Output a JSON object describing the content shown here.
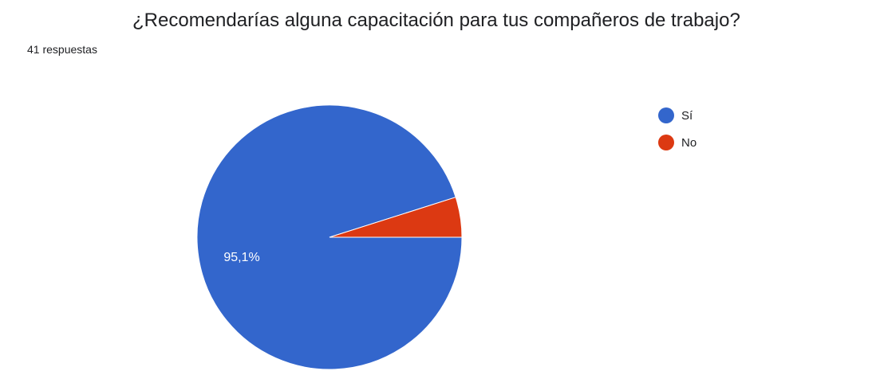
{
  "header": {
    "title": "¿Recomendarías alguna capacitación para tus compañeros de trabajo?",
    "response_count": "41 respuestas"
  },
  "chart_data": {
    "type": "pie",
    "title": "¿Recomendarías alguna capacitación para tus compañeros de trabajo?",
    "subtitle": "41 respuestas",
    "legend_position": "top-right",
    "slices": [
      {
        "label": "Sí",
        "value": 95.1,
        "display": "95,1%",
        "color": "#3366cc"
      },
      {
        "label": "No",
        "value": 4.9,
        "display": "",
        "color": "#dc3912"
      }
    ]
  }
}
